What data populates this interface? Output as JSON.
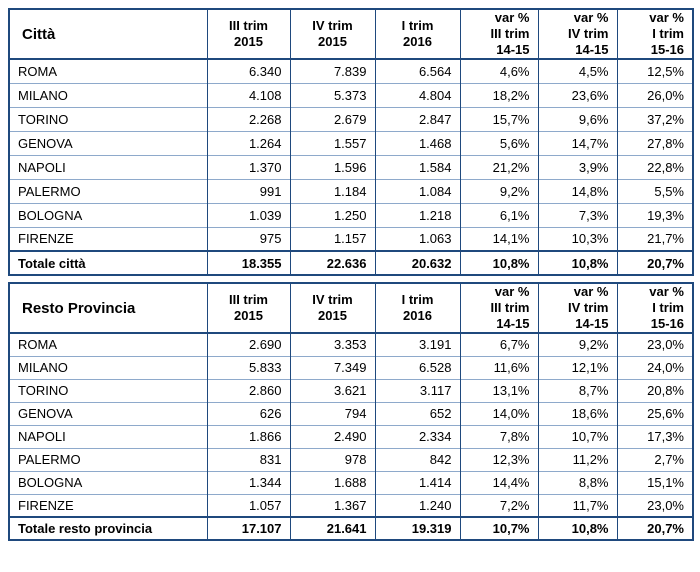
{
  "page": {
    "background": "#ffffff",
    "text_color": "#000000",
    "border_dark": "#1f497d",
    "border_light": "#8ea9cb"
  },
  "chart_data": [
    {
      "type": "table",
      "title": "Città",
      "columns": [
        [
          "III trim",
          "2015"
        ],
        [
          "IV trim",
          "2015"
        ],
        [
          "I trim",
          "2016"
        ],
        [
          "var %",
          "III trim",
          "14-15"
        ],
        [
          "var %",
          "IV trim",
          "14-15"
        ],
        [
          "var %",
          "I trim",
          "15-16"
        ]
      ],
      "rows": [
        {
          "label": "ROMA",
          "values": [
            "6.340",
            "7.839",
            "6.564",
            "4,6%",
            "4,5%",
            "12,5%"
          ]
        },
        {
          "label": "MILANO",
          "values": [
            "4.108",
            "5.373",
            "4.804",
            "18,2%",
            "23,6%",
            "26,0%"
          ]
        },
        {
          "label": "TORINO",
          "values": [
            "2.268",
            "2.679",
            "2.847",
            "15,7%",
            "9,6%",
            "37,2%"
          ]
        },
        {
          "label": "GENOVA",
          "values": [
            "1.264",
            "1.557",
            "1.468",
            "5,6%",
            "14,7%",
            "27,8%"
          ]
        },
        {
          "label": "NAPOLI",
          "values": [
            "1.370",
            "1.596",
            "1.584",
            "21,2%",
            "3,9%",
            "22,8%"
          ]
        },
        {
          "label": "PALERMO",
          "values": [
            "991",
            "1.184",
            "1.084",
            "9,2%",
            "14,8%",
            "5,5%"
          ]
        },
        {
          "label": "BOLOGNA",
          "values": [
            "1.039",
            "1.250",
            "1.218",
            "6,1%",
            "7,3%",
            "19,3%"
          ]
        },
        {
          "label": "FIRENZE",
          "values": [
            "975",
            "1.157",
            "1.063",
            "14,1%",
            "10,3%",
            "21,7%"
          ]
        }
      ],
      "total": {
        "label": "Totale città",
        "values": [
          "18.355",
          "22.636",
          "20.632",
          "10,8%",
          "10,8%",
          "20,7%"
        ]
      }
    },
    {
      "type": "table",
      "title": "Resto Provincia",
      "columns": [
        [
          "III trim",
          "2015"
        ],
        [
          "IV trim",
          "2015"
        ],
        [
          "I trim",
          "2016"
        ],
        [
          "var %",
          "III trim",
          "14-15"
        ],
        [
          "var %",
          "IV trim",
          "14-15"
        ],
        [
          "var %",
          "I trim",
          "15-16"
        ]
      ],
      "rows": [
        {
          "label": "ROMA",
          "values": [
            "2.690",
            "3.353",
            "3.191",
            "6,7%",
            "9,2%",
            "23,0%"
          ]
        },
        {
          "label": "MILANO",
          "values": [
            "5.833",
            "7.349",
            "6.528",
            "11,6%",
            "12,1%",
            "24,0%"
          ]
        },
        {
          "label": "TORINO",
          "values": [
            "2.860",
            "3.621",
            "3.117",
            "13,1%",
            "8,7%",
            "20,8%"
          ]
        },
        {
          "label": "GENOVA",
          "values": [
            "626",
            "794",
            "652",
            "14,0%",
            "18,6%",
            "25,6%"
          ]
        },
        {
          "label": "NAPOLI",
          "values": [
            "1.866",
            "2.490",
            "2.334",
            "7,8%",
            "10,7%",
            "17,3%"
          ]
        },
        {
          "label": "PALERMO",
          "values": [
            "831",
            "978",
            "842",
            "12,3%",
            "11,2%",
            "2,7%"
          ]
        },
        {
          "label": "BOLOGNA",
          "values": [
            "1.344",
            "1.688",
            "1.414",
            "14,4%",
            "8,8%",
            "15,1%"
          ]
        },
        {
          "label": "FIRENZE",
          "values": [
            "1.057",
            "1.367",
            "1.240",
            "7,2%",
            "11,7%",
            "23,0%"
          ]
        }
      ],
      "total": {
        "label": "Totale resto provincia",
        "values": [
          "17.107",
          "21.641",
          "19.319",
          "10,7%",
          "10,8%",
          "20,7%"
        ]
      }
    }
  ]
}
